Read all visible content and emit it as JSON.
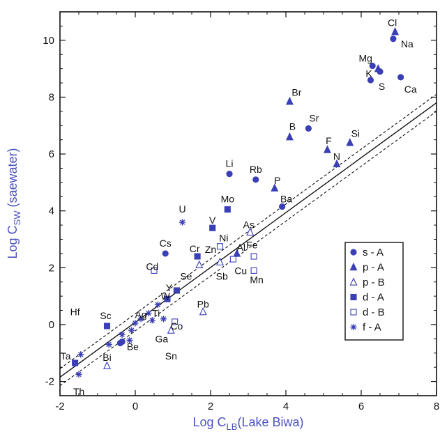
{
  "chart_data": {
    "type": "scatter",
    "x_axis": {
      "range": [
        -2,
        8
      ],
      "ticks": [
        -2,
        0,
        2,
        4,
        6,
        8
      ],
      "tick_labels": [
        "-2",
        "0",
        "2",
        "4",
        "6",
        "8"
      ],
      "title_prefix": "Log C",
      "title_sub": "LB",
      "title_suffix": "(Lake Biwa)"
    },
    "y_axis": {
      "range": [
        -2.5,
        11
      ],
      "ticks": [
        -2,
        0,
        2,
        4,
        6,
        8,
        10
      ],
      "tick_labels": [
        "-2",
        "0",
        "2",
        "4",
        "6",
        "8",
        "10"
      ],
      "title_prefix": "Log C",
      "title_sub": "SW",
      "title_suffix": " (saewater)"
    },
    "reference_lines": [
      {
        "style": "solid",
        "points": [
          [
            -2,
            -1.85
          ],
          [
            8,
            7.8
          ]
        ]
      },
      {
        "style": "dashed",
        "points": [
          [
            -2,
            -1.55
          ],
          [
            8,
            8.1
          ]
        ]
      },
      {
        "style": "dashed",
        "points": [
          [
            -2,
            -2.15
          ],
          [
            8,
            7.5
          ]
        ]
      }
    ],
    "series": [
      {
        "name": "s - A",
        "marker": "filled-circle",
        "points": [
          {
            "x": 6.85,
            "y": 10.05,
            "label": "Na"
          },
          {
            "x": 6.3,
            "y": 9.1,
            "label": "Mg"
          },
          {
            "x": 6.5,
            "y": 8.9,
            "label": "K"
          },
          {
            "x": 6.25,
            "y": 8.6,
            "label": "S"
          },
          {
            "x": 7.05,
            "y": 8.7,
            "label": "Ca"
          },
          {
            "x": 4.6,
            "y": 6.9,
            "label": "Sr"
          },
          {
            "x": 2.5,
            "y": 5.3,
            "label": "Li"
          },
          {
            "x": 3.2,
            "y": 5.1,
            "label": "Rb"
          },
          {
            "x": 3.9,
            "y": 4.15,
            "label": "Ba"
          },
          {
            "x": 0.8,
            "y": 2.5,
            "label": "Cs"
          },
          {
            "x": -0.4,
            "y": -0.65,
            "label": "Be"
          },
          {
            "x": -0.35,
            "y": -0.6,
            "label": ""
          }
        ]
      },
      {
        "name": "p - A",
        "marker": "filled-triangle",
        "points": [
          {
            "x": 6.9,
            "y": 10.3,
            "label": "Cl"
          },
          {
            "x": 6.45,
            "y": 9.0,
            "label": ""
          },
          {
            "x": 4.1,
            "y": 7.85,
            "label": "Br"
          },
          {
            "x": 4.1,
            "y": 6.6,
            "label": "B"
          },
          {
            "x": 5.7,
            "y": 6.4,
            "label": "Si"
          },
          {
            "x": 5.1,
            "y": 6.15,
            "label": "F"
          },
          {
            "x": 5.35,
            "y": 5.65,
            "label": "N"
          },
          {
            "x": 3.7,
            "y": 4.8,
            "label": "P"
          },
          {
            "x": 2.7,
            "y": 2.5,
            "label": "Al"
          }
        ]
      },
      {
        "name": "p - B",
        "marker": "open-triangle",
        "points": [
          {
            "x": 3.05,
            "y": 3.25,
            "label": "As"
          },
          {
            "x": 2.25,
            "y": 2.2,
            "label": ""
          },
          {
            "x": 1.7,
            "y": 2.1,
            "label": ""
          },
          {
            "x": 1.8,
            "y": 0.45,
            "label": "Pb"
          },
          {
            "x": 0.95,
            "y": -0.2,
            "label": ""
          },
          {
            "x": -0.75,
            "y": -1.45,
            "label": ""
          }
        ]
      },
      {
        "name": "d - A",
        "marker": "filled-square",
        "points": [
          {
            "x": 2.45,
            "y": 4.05,
            "label": "Mo"
          },
          {
            "x": 2.05,
            "y": 3.4,
            "label": "V"
          },
          {
            "x": 1.65,
            "y": 2.4,
            "label": "Cr"
          },
          {
            "x": 1.1,
            "y": 1.2,
            "label": ""
          },
          {
            "x": 0.85,
            "y": 0.9,
            "label": ""
          },
          {
            "x": -0.75,
            "y": -0.05,
            "label": "Sc"
          },
          {
            "x": -1.6,
            "y": -1.35,
            "label": ""
          }
        ]
      },
      {
        "name": "d - B",
        "marker": "open-square",
        "points": [
          {
            "x": 2.25,
            "y": 2.75,
            "label": ""
          },
          {
            "x": 2.6,
            "y": 2.3,
            "label": ""
          },
          {
            "x": 3.15,
            "y": 2.4,
            "label": ""
          },
          {
            "x": 3.15,
            "y": 1.9,
            "label": "Mn"
          },
          {
            "x": 0.5,
            "y": 1.9,
            "label": ""
          },
          {
            "x": 1.05,
            "y": 0.1,
            "label": ""
          }
        ]
      },
      {
        "name": "f - A",
        "marker": "star",
        "points": [
          {
            "x": 1.25,
            "y": 3.6,
            "label": "U"
          },
          {
            "x": 0.6,
            "y": 0.7,
            "label": ""
          },
          {
            "x": 0.35,
            "y": 0.4,
            "label": ""
          },
          {
            "x": 0.15,
            "y": 0.2,
            "label": ""
          },
          {
            "x": 0.0,
            "y": 0.05,
            "label": ""
          },
          {
            "x": 0.45,
            "y": 0.15,
            "label": ""
          },
          {
            "x": 0.75,
            "y": 0.2,
            "label": ""
          },
          {
            "x": -0.1,
            "y": -0.2,
            "label": ""
          },
          {
            "x": -0.35,
            "y": -0.35,
            "label": ""
          },
          {
            "x": -0.15,
            "y": -0.55,
            "label": ""
          },
          {
            "x": -0.7,
            "y": -0.7,
            "label": ""
          },
          {
            "x": -1.45,
            "y": -1.05,
            "label": ""
          },
          {
            "x": -1.5,
            "y": -1.75,
            "label": ""
          }
        ]
      }
    ],
    "floating_labels": [
      {
        "x": 2.35,
        "y": 3.05,
        "label": "Ni"
      },
      {
        "x": 2.0,
        "y": 2.65,
        "label": "Zn"
      },
      {
        "x": 3.1,
        "y": 2.8,
        "label": "Fe"
      },
      {
        "x": 2.3,
        "y": 1.7,
        "label": "Sb"
      },
      {
        "x": 2.8,
        "y": 1.9,
        "label": "Cu"
      },
      {
        "x": 0.45,
        "y": 2.05,
        "label": "Cd"
      },
      {
        "x": 1.35,
        "y": 1.7,
        "label": "Se"
      },
      {
        "x": 0.9,
        "y": 1.3,
        "label": "Y"
      },
      {
        "x": 0.8,
        "y": 1.0,
        "label": "W"
      },
      {
        "x": 0.55,
        "y": 0.4,
        "label": "Ti"
      },
      {
        "x": 0.15,
        "y": 0.35,
        "label": "Ag"
      },
      {
        "x": 1.1,
        "y": -0.05,
        "label": "Co"
      },
      {
        "x": 0.7,
        "y": -0.5,
        "label": "Ga"
      },
      {
        "x": 0.95,
        "y": -1.1,
        "label": "Sn"
      },
      {
        "x": -1.6,
        "y": 0.45,
        "label": "Hf"
      },
      {
        "x": -0.75,
        "y": -1.15,
        "label": "Bi"
      },
      {
        "x": -1.85,
        "y": -1.1,
        "label": "Ta"
      },
      {
        "x": -1.5,
        "y": -2.35,
        "label": "Th"
      }
    ],
    "legend": {
      "placement": "right",
      "items": [
        {
          "marker": "filled-circle",
          "label": "s - A"
        },
        {
          "marker": "filled-triangle",
          "label": "p - A"
        },
        {
          "marker": "open-triangle",
          "label": "p - B"
        },
        {
          "marker": "filled-square",
          "label": "d - A"
        },
        {
          "marker": "open-square",
          "label": "d - B"
        },
        {
          "marker": "star",
          "label": "f - A"
        }
      ]
    },
    "colors": {
      "marker": "#3b3fb5",
      "axis_title": "#4a52c0",
      "line": "#111111",
      "text": "#111111"
    }
  }
}
